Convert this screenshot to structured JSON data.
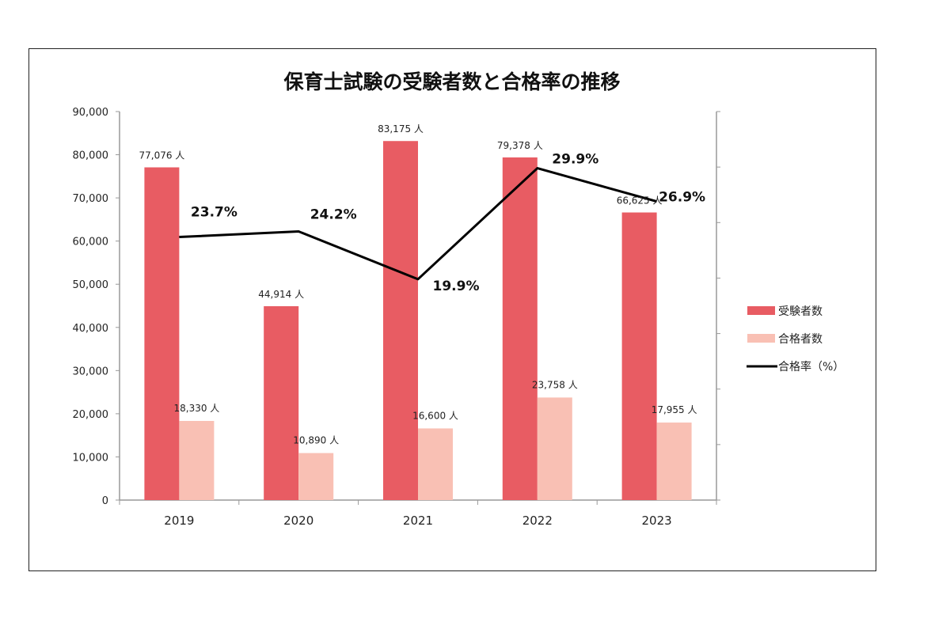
{
  "chart_data": {
    "type": "bar+line",
    "title": "保育士試験の受験者数と合格率の推移",
    "categories": [
      "2019",
      "2020",
      "2021",
      "2022",
      "2023"
    ],
    "unit_suffix": "人",
    "series": [
      {
        "name": "受験者数",
        "type": "bar",
        "axis": "left",
        "color": "#e85c63",
        "values": [
          77076,
          44914,
          83175,
          79378,
          66625
        ],
        "labels": [
          "77,076 人",
          "44,914 人",
          "83,175 人",
          "79,378 人",
          "66,625 人"
        ]
      },
      {
        "name": "合格者数",
        "type": "bar",
        "axis": "left",
        "color": "#f9c0b4",
        "values": [
          18330,
          10890,
          16600,
          23758,
          17955
        ],
        "labels": [
          "18,330 人",
          "10,890 人",
          "16,600 人",
          "23,758 人",
          "17,955 人"
        ]
      },
      {
        "name": "合格率（%）",
        "type": "line",
        "axis": "right",
        "color": "#000000",
        "values": [
          23.7,
          24.2,
          19.9,
          29.9,
          26.9
        ],
        "labels": [
          "23.7%",
          "24.2%",
          "19.9%",
          "29.9%",
          "26.9%"
        ]
      }
    ],
    "left_axis": {
      "ylim": [
        0,
        90000
      ],
      "ticks": [
        "0",
        "10,000",
        "20,000",
        "30,000",
        "40,000",
        "50,000",
        "60,000",
        "70,000",
        "80,000",
        "90,000"
      ]
    },
    "right_axis": {
      "ylim": [
        0,
        35
      ],
      "tick_labels_shown": false
    },
    "legend_position": "right",
    "grid": false
  }
}
